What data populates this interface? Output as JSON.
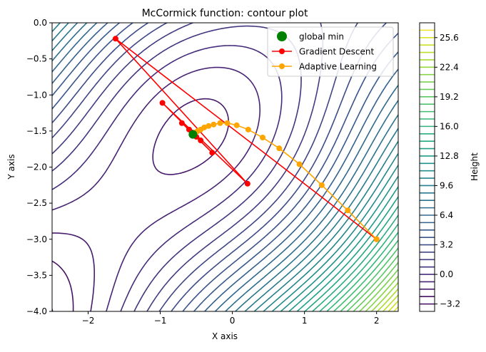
{
  "chart_data": {
    "type": "contour",
    "title": "McCormick function: contour plot",
    "xlabel": "X axis",
    "ylabel": "Y axis",
    "xlim": [
      -2.5,
      2.3
    ],
    "ylim": [
      -4.0,
      0.0
    ],
    "x_ticks": [
      -2,
      -1,
      0,
      1,
      2
    ],
    "x_tick_labels": [
      "−2",
      "−1",
      "0",
      "1",
      "2"
    ],
    "y_ticks": [
      0.0,
      -0.5,
      -1.0,
      -1.5,
      -2.0,
      -2.5,
      -3.0,
      -3.5,
      -4.0
    ],
    "y_tick_labels": [
      "0.0",
      "−0.5",
      "−1.0",
      "−1.5",
      "−2.0",
      "−2.5",
      "−3.0",
      "−3.5",
      "−4.0"
    ],
    "colorbar": {
      "label": "Height",
      "range": [
        -4.0,
        27.2
      ],
      "ticks": [
        25.6,
        22.4,
        19.2,
        16.0,
        12.8,
        9.6,
        6.4,
        3.2,
        0.0,
        -3.2
      ],
      "tick_labels": [
        "25.6",
        "22.4",
        "19.2",
        "16.0",
        "12.8",
        "9.6",
        "6.4",
        "3.2",
        "0.0",
        "−3.2"
      ],
      "level_step": 0.8
    },
    "contour_levels": {
      "min": -3.2,
      "max": 26.4,
      "step": 0.8
    },
    "colormap": [
      "#440154",
      "#482878",
      "#3e4a89",
      "#31688e",
      "#26828e",
      "#1f9e89",
      "#35b779",
      "#6ece58",
      "#b5de2b",
      "#fde725"
    ],
    "legend": {
      "position": "top-right",
      "entries": [
        {
          "label": "global min",
          "color": "#008000",
          "marker": "circle-large"
        },
        {
          "label": "Gradient Descent",
          "color": "#ff0000",
          "marker": "line-circle"
        },
        {
          "label": "Adaptive Learning",
          "color": "#ffa500",
          "marker": "line-circle"
        }
      ]
    },
    "series": [
      {
        "name": "global min",
        "color": "#008000",
        "kind": "point",
        "points": [
          [
            -0.547,
            -1.547
          ]
        ]
      },
      {
        "name": "Gradient Descent",
        "color": "#ff0000",
        "kind": "line",
        "points": [
          [
            2.0,
            -3.0
          ],
          [
            -1.62,
            -0.22
          ],
          [
            0.21,
            -2.23
          ],
          [
            -0.97,
            -1.11
          ],
          [
            -0.28,
            -1.8
          ],
          [
            -0.7,
            -1.39
          ],
          [
            -0.44,
            -1.63
          ],
          [
            -0.6,
            -1.48
          ],
          [
            -0.5,
            -1.58
          ],
          [
            -0.56,
            -1.52
          ],
          [
            -0.53,
            -1.56
          ],
          [
            -0.55,
            -1.54
          ]
        ]
      },
      {
        "name": "Adaptive Learning",
        "color": "#ffa500",
        "kind": "line",
        "points": [
          [
            2.0,
            -3.0
          ],
          [
            1.6,
            -2.6
          ],
          [
            1.24,
            -2.25
          ],
          [
            0.93,
            -1.96
          ],
          [
            0.65,
            -1.74
          ],
          [
            0.42,
            -1.59
          ],
          [
            0.22,
            -1.48
          ],
          [
            0.06,
            -1.42
          ],
          [
            -0.07,
            -1.39
          ],
          [
            -0.17,
            -1.39
          ],
          [
            -0.26,
            -1.41
          ],
          [
            -0.33,
            -1.43
          ],
          [
            -0.39,
            -1.45
          ],
          [
            -0.44,
            -1.48
          ],
          [
            -0.48,
            -1.5
          ],
          [
            -0.51,
            -1.52
          ],
          [
            -0.53,
            -1.53
          ],
          [
            -0.54,
            -1.54
          ],
          [
            -0.55,
            -1.55
          ]
        ]
      }
    ]
  }
}
